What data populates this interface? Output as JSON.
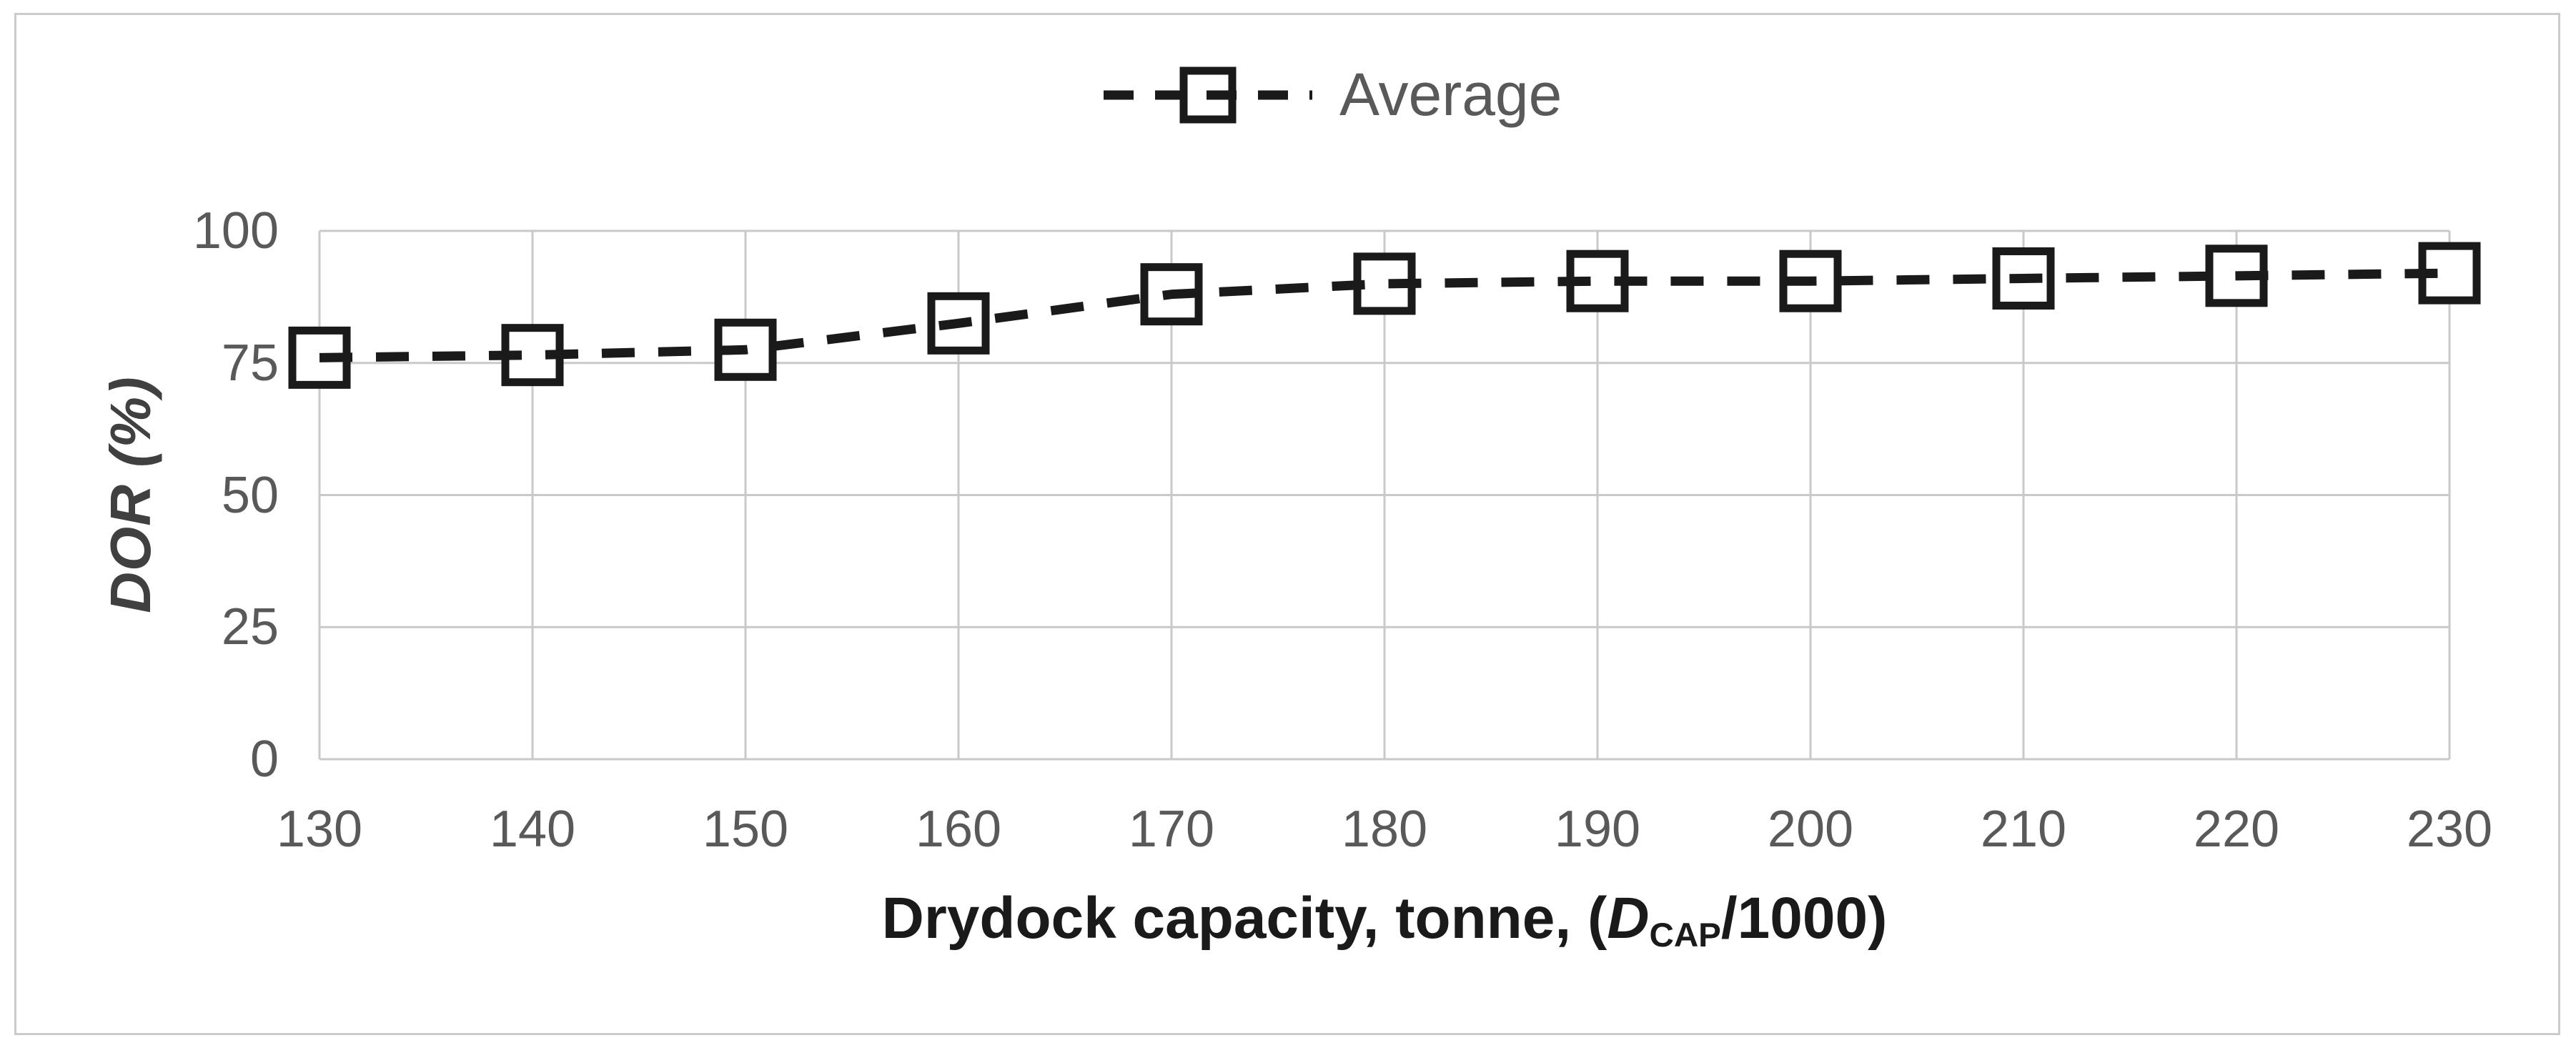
{
  "legend": {
    "label": "Average"
  },
  "chart_data": {
    "type": "line",
    "title": "",
    "categories": [
      130,
      140,
      150,
      160,
      170,
      180,
      190,
      200,
      210,
      220,
      230
    ],
    "series": [
      {
        "name": "Average",
        "line_style": "dashed",
        "marker": "open-square",
        "values": [
          76,
          76.5,
          77.5,
          82.5,
          88,
          90,
          90.5,
          90.5,
          91,
          91.5,
          92
        ]
      }
    ],
    "xlabel": "Drydock capacity, tonne, (D_CAP/1000)",
    "xlabel_parts": {
      "prefix": "Drydock capacity, tonne, (",
      "variable": "D",
      "subscript": "CAP",
      "suffix": "/1000)"
    },
    "ylabel": "DOR (%)",
    "ylabel_parts": {
      "variable": "DOR",
      "unit": " (%)"
    },
    "ylim": [
      0,
      100
    ],
    "y_ticks": [
      0,
      25,
      50,
      75,
      100
    ],
    "x_tick_labels": [
      "130",
      "140",
      "150",
      "160",
      "170",
      "180",
      "190",
      "200",
      "210",
      "220",
      "230"
    ],
    "grid": true,
    "legend_position": "top-center",
    "colors": {
      "series": "#1a1a1a",
      "marker_fill": "#ffffff",
      "gridline": "#c9c9c9",
      "tick_label": "#595959",
      "legend_text": "#595959",
      "y_axis_title": "#404040",
      "x_axis_title": "#1a1a1a",
      "figure_border": "#cbcbcb",
      "background": "#ffffff"
    }
  }
}
